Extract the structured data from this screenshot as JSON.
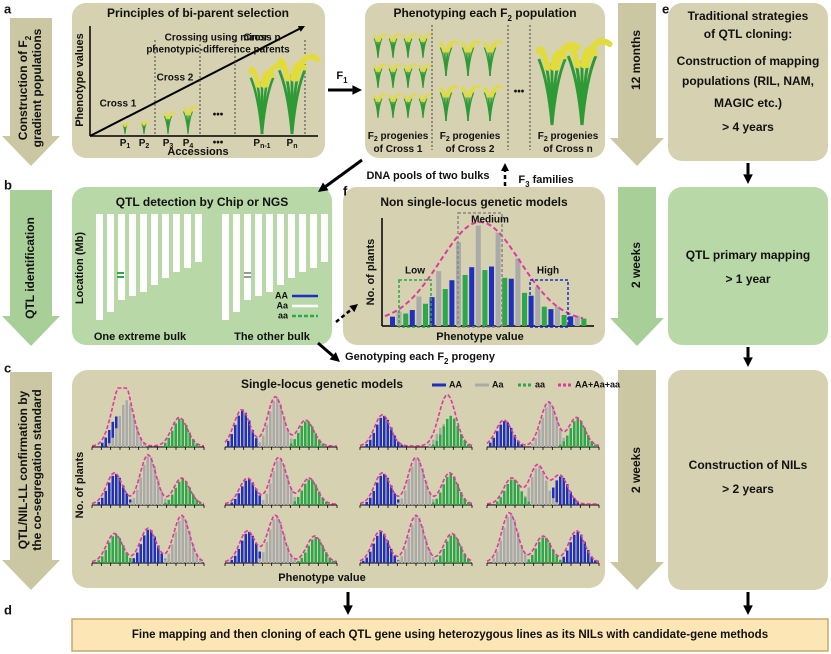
{
  "panel_labels": [
    "a",
    "b",
    "c",
    "d",
    "e",
    "f"
  ],
  "side_arrows": [
    [
      [
        "Construction of F",
        "2"
      ],
      [
        "gradient populations"
      ]
    ],
    [
      [
        "QTL identification"
      ]
    ],
    [
      [
        "QTL/NIL-LL confirmation by"
      ],
      [
        "the co-segregation standard"
      ]
    ]
  ],
  "a": {
    "title": "Principles of bi-parent selection",
    "y_axis": "Phenotype values",
    "x_axis": "Accessions",
    "note": [
      "Crossing using minor-",
      "phenotypic-difference  parents"
    ],
    "crosses": [
      "Cross 1",
      "Cross 2",
      "Cross n"
    ],
    "parents": [
      [
        "P",
        "1"
      ],
      [
        "P",
        "2"
      ],
      [
        "P",
        "3"
      ],
      [
        "P",
        "4"
      ],
      "•••",
      [
        "P",
        "n-1"
      ],
      [
        "P",
        "n"
      ]
    ]
  },
  "f1": [
    "F",
    "1"
  ],
  "phenotyping": {
    "title": [
      "Phenotyping each F",
      "2",
      " population"
    ],
    "groups": [
      [
        [
          "F",
          "2",
          " progenies"
        ],
        [
          "of Cross 1"
        ]
      ],
      [
        [
          "F",
          "2",
          " progenies"
        ],
        [
          "of Cross 2"
        ]
      ],
      [
        [
          "F",
          "2",
          " progenies"
        ],
        [
          "of Cross n"
        ]
      ]
    ],
    "ellipsis": "•••"
  },
  "durations": [
    "12 months",
    "2 weeks",
    "2 weeks"
  ],
  "dna_pools": "DNA pools of two bulks",
  "f3": [
    "F",
    "3",
    " families"
  ],
  "genotyping": [
    "Genotyping each F",
    "2",
    " progeny"
  ],
  "b": {
    "title": "QTL detection by Chip or NGS",
    "y_axis": "Location (Mb)",
    "bulks": [
      "One extreme bulk",
      "The other bulk"
    ],
    "legend": [
      "AA",
      "Aa",
      "aa"
    ]
  },
  "f": {
    "title": "Non single-locus genetic models",
    "groups": [
      "Low",
      "Medium",
      "High"
    ],
    "y_axis": "No. of plants",
    "x_axis": "Phenotype value"
  },
  "c": {
    "title": "Single-locus genetic models",
    "legend": [
      "AA",
      "Aa",
      "aa",
      "AA+Aa+aa"
    ],
    "y_axis": "No. of plants",
    "x_axis": "Phenotype value"
  },
  "d": "Fine mapping and then cloning of each QTL gene using heterozygous lines as its NILs with candidate-gene methods",
  "e": {
    "boxes": [
      [
        "Traditional strategies",
        "of QTL cloning:",
        "Construction of mapping",
        "populations (RIL, NAM,",
        "MAGIC etc.)",
        "> 4 years"
      ],
      [
        "QTL primary mapping",
        "> 1 year"
      ],
      [
        "Construction of NILs",
        "> 2 years"
      ]
    ]
  }
}
